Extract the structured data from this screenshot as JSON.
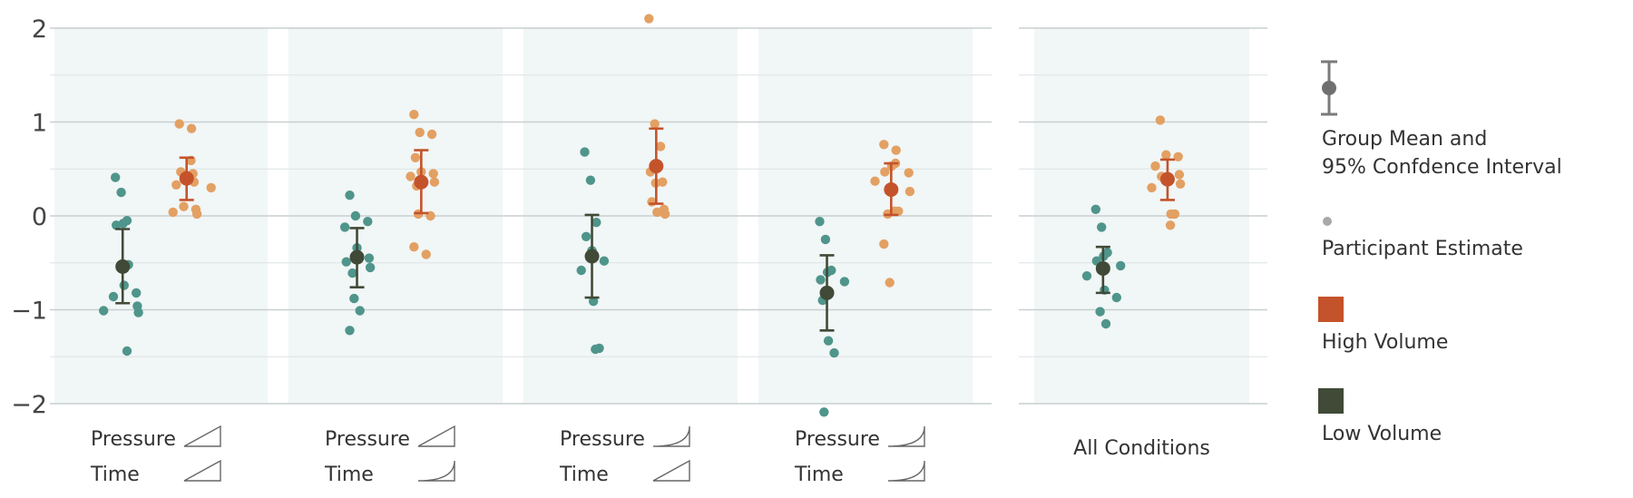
{
  "colors": {
    "panel_bg": "#f1f6f6",
    "grid_major": "#c9cfcf",
    "grid_minor": "#dde3e3",
    "high_dot": "#e3a063",
    "high_mean": "#c4532b",
    "low_dot": "#4f958b",
    "low_mean": "#404a37",
    "legend_gray": "#7a7a7a"
  },
  "legend": {
    "ci_label_1": "Group Mean and",
    "ci_label_2": "95% Confdence Interval",
    "participant_label": "Participant Estimate",
    "high_label": "High Volume",
    "low_label": "Low Volume"
  },
  "chart_data": {
    "type": "scatter",
    "ylim": [
      -2,
      2
    ],
    "yticks": [
      {
        "v": 2,
        "label": "2"
      },
      {
        "v": 1,
        "label": "1"
      },
      {
        "v": 0,
        "label": "0"
      },
      {
        "v": -1,
        "label": "−1"
      },
      {
        "v": -2,
        "label": "−2"
      }
    ],
    "series_order": [
      "Low Volume",
      "High Volume"
    ],
    "panels": [
      {
        "label_pressure": "Pressure",
        "label_time": "Time",
        "pressure_curve": "linear",
        "time_curve": "linear",
        "label_all": "",
        "low": {
          "mean": -0.54,
          "ci": [
            -0.93,
            -0.14
          ],
          "points": [
            0.41,
            0.25,
            -0.05,
            -0.08,
            -0.1,
            -0.52,
            -0.56,
            -0.74,
            -0.82,
            -0.86,
            -0.96,
            -1.01,
            -1.03,
            -1.44
          ]
        },
        "high": {
          "mean": 0.4,
          "ci": [
            0.17,
            0.62
          ],
          "points": [
            0.98,
            0.93,
            0.59,
            0.47,
            0.45,
            0.43,
            0.36,
            0.33,
            0.3,
            0.1,
            0.07,
            0.04,
            0.02
          ]
        }
      },
      {
        "label_pressure": "Pressure",
        "label_time": "Time",
        "pressure_curve": "linear",
        "time_curve": "convex",
        "label_all": "",
        "low": {
          "mean": -0.44,
          "ci": [
            -0.76,
            -0.13
          ],
          "points": [
            0.22,
            0.0,
            -0.06,
            -0.12,
            -0.34,
            -0.45,
            -0.49,
            -0.55,
            -0.61,
            -0.88,
            -1.01,
            -1.22
          ]
        },
        "high": {
          "mean": 0.36,
          "ci": [
            0.03,
            0.7
          ],
          "points": [
            1.08,
            0.89,
            0.87,
            0.62,
            0.47,
            0.45,
            0.42,
            0.36,
            0.32,
            0.02,
            0.0,
            -0.33,
            -0.41
          ]
        }
      },
      {
        "label_pressure": "Pressure",
        "label_time": "Time",
        "pressure_curve": "convex",
        "time_curve": "linear",
        "label_all": "",
        "low": {
          "mean": -0.43,
          "ci": [
            -0.87,
            0.01
          ],
          "points": [
            0.68,
            0.38,
            -0.07,
            -0.22,
            -0.37,
            -0.48,
            -0.58,
            -0.91,
            -1.41,
            -1.42
          ]
        },
        "high": {
          "mean": 0.53,
          "ci": [
            0.13,
            0.93
          ],
          "points": [
            2.1,
            0.98,
            0.74,
            0.47,
            0.36,
            0.35,
            0.15,
            0.07,
            0.04,
            0.02
          ]
        }
      },
      {
        "label_pressure": "Pressure",
        "label_time": "Time",
        "pressure_curve": "convex",
        "time_curve": "convex",
        "label_all": "",
        "low": {
          "mean": -0.82,
          "ci": [
            -1.22,
            -0.42
          ],
          "points": [
            -0.06,
            -0.25,
            -0.58,
            -0.6,
            -0.68,
            -0.7,
            -0.9,
            -1.33,
            -1.46,
            -2.09
          ]
        },
        "high": {
          "mean": 0.28,
          "ci": [
            0.01,
            0.56
          ],
          "points": [
            0.76,
            0.7,
            0.56,
            0.53,
            0.47,
            0.46,
            0.37,
            0.26,
            0.05,
            0.05,
            0.02,
            -0.3,
            -0.71
          ]
        }
      },
      {
        "label_pressure": "",
        "label_time": "",
        "pressure_curve": "",
        "time_curve": "",
        "label_all": "All Conditions",
        "low": {
          "mean": -0.56,
          "ci": [
            -0.82,
            -0.33
          ],
          "points": [
            0.07,
            -0.12,
            -0.39,
            -0.43,
            -0.48,
            -0.53,
            -0.64,
            -0.79,
            -0.87,
            -1.02,
            -1.15
          ]
        },
        "high": {
          "mean": 0.39,
          "ci": [
            0.17,
            0.6
          ],
          "points": [
            1.02,
            0.65,
            0.63,
            0.53,
            0.44,
            0.42,
            0.34,
            0.3,
            0.02,
            0.02,
            -0.1
          ]
        }
      }
    ]
  }
}
